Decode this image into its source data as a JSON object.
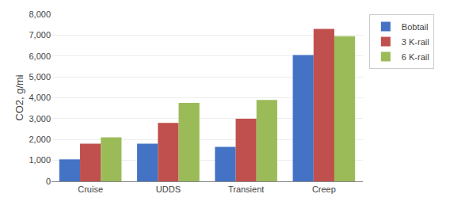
{
  "chart_data": {
    "type": "bar",
    "ylabel": "CO2, g/mi",
    "categories": [
      "Cruise",
      "UDDS",
      "Transient",
      "Creep"
    ],
    "series": [
      {
        "name": "Bobtail",
        "color": "#4472C4",
        "values": [
          1050,
          1800,
          1650,
          6050
        ]
      },
      {
        "name": "3 K-rail",
        "color": "#C0504D",
        "values": [
          1800,
          2800,
          3000,
          7300
        ]
      },
      {
        "name": "6 K-rail",
        "color": "#9BBB59",
        "values": [
          2100,
          3750,
          3900,
          6950
        ]
      }
    ],
    "ylim": [
      0,
      8000
    ],
    "yticks": [
      0,
      {
        "value": 1000,
        "label": "1,000"
      },
      {
        "value": 2000,
        "label": "2,000"
      },
      {
        "value": 3000,
        "label": "3,000"
      },
      {
        "value": 4000,
        "label": "4,000"
      },
      {
        "value": 5000,
        "label": "5,000"
      },
      {
        "value": 6000,
        "label": "6,000"
      },
      {
        "value": 7000,
        "label": "7,000"
      },
      {
        "value": 8000,
        "label": "8,000"
      }
    ],
    "grid": true,
    "legend": "upper right"
  }
}
